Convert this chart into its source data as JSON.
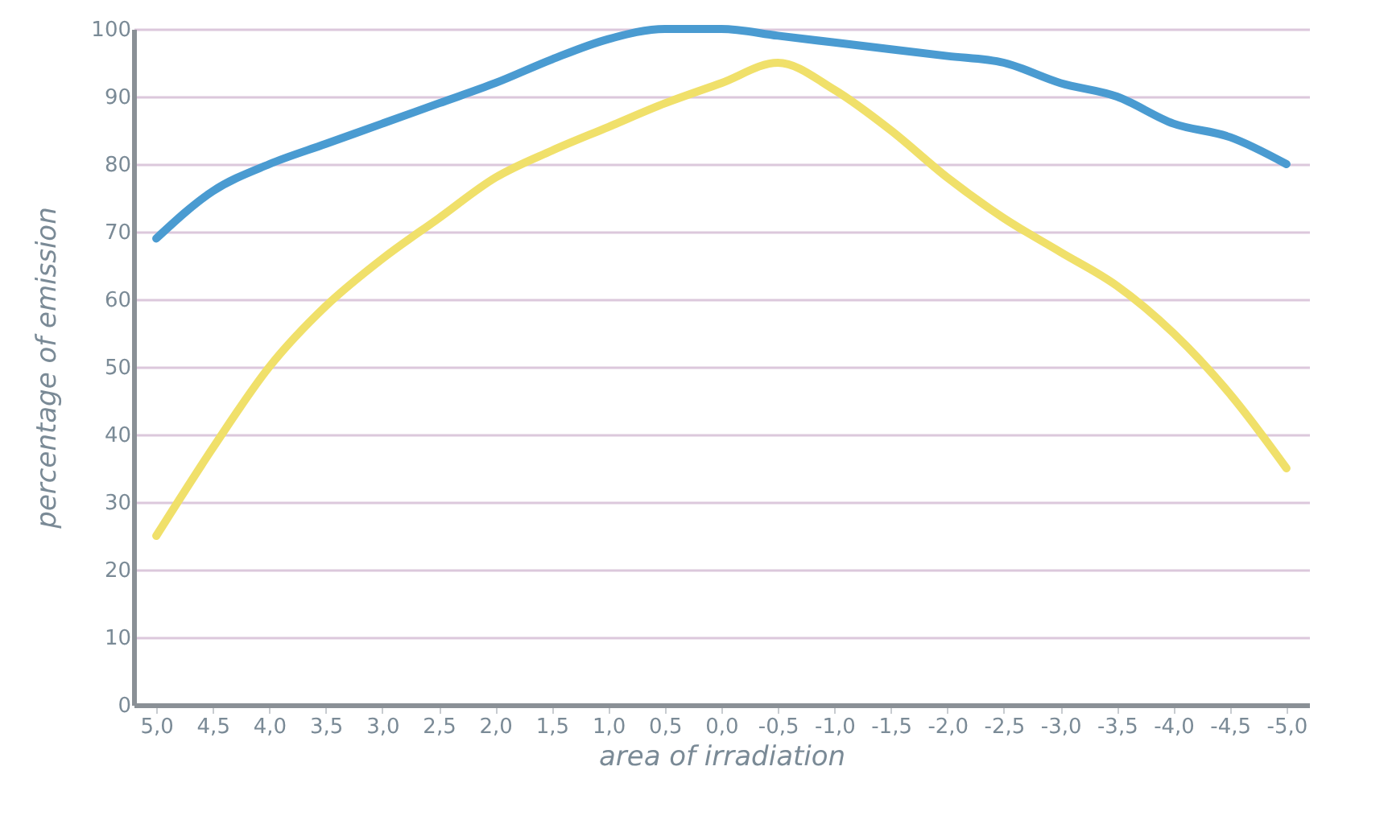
{
  "chart_data": {
    "type": "line",
    "xlabel": "area of irradiation",
    "ylabel": "percentage of emission",
    "categories": [
      "5,0",
      "4,5",
      "4,0",
      "3,5",
      "3,0",
      "2,5",
      "2,0",
      "1,5",
      "1,0",
      "0,5",
      "0,0",
      "-0,5",
      "-1,0",
      "-1,5",
      "-2,0",
      "-2,5",
      "-3,0",
      "-3,5",
      "-4,0",
      "-4,5",
      "-5,0"
    ],
    "series": [
      {
        "color": "#4a9bd1",
        "values": [
          69,
          76,
          80,
          83,
          86,
          89,
          92,
          95.5,
          98.5,
          100,
          100,
          99,
          98,
          97,
          96,
          95,
          92,
          90,
          86,
          84,
          80
        ]
      },
      {
        "color": "#f0e06a",
        "values": [
          25,
          38,
          50,
          59,
          66,
          72,
          78,
          82,
          85.5,
          89,
          92,
          95,
          91,
          85,
          78,
          72,
          67,
          62,
          55,
          46,
          35
        ]
      }
    ],
    "ylim": [
      0,
      100
    ],
    "yticks": [
      0,
      10,
      20,
      30,
      40,
      50,
      60,
      70,
      80,
      90,
      100
    ],
    "grid": "y",
    "line_style": "solid",
    "marker": "none"
  }
}
